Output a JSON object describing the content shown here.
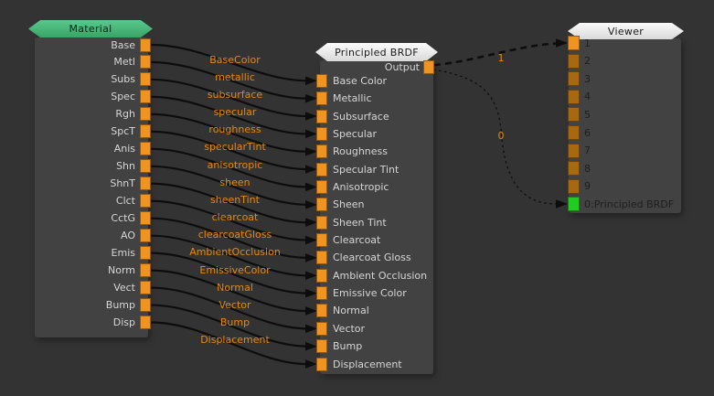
{
  "colors": {
    "background": "#333333",
    "node_body": "#424242",
    "header_material_green": "#48bb7e",
    "header_light": "#f1f1f1",
    "socket_connected": "#ef9421",
    "socket_unconnected": "#a8680f",
    "socket_viewer_result_green": "#20cc20",
    "wire": "#0d0d0d",
    "wire_label_orange": "#e8870f",
    "node_label_light": "#d6d6d6",
    "node_label_dark": "#1e1e1e"
  },
  "nodes": {
    "material": {
      "title": "Material",
      "outputs": [
        "Base",
        "Metl",
        "Subs",
        "Spec",
        "Rgh",
        "SpcT",
        "Anis",
        "Shn",
        "ShnT",
        "Clct",
        "CctG",
        "AO",
        "Emis",
        "Norm",
        "Vect",
        "Bump",
        "Disp"
      ]
    },
    "principled_brdf": {
      "title": "Principled BRDF",
      "output_label": "Output",
      "inputs": [
        "Base Color",
        "Metallic",
        "Subsurface",
        "Specular",
        "Roughness",
        "Specular Tint",
        "Anisotropic",
        "Sheen",
        "Sheen Tint",
        "Clearcoat",
        "Clearcoat Gloss",
        "Ambient Occlusion",
        "Emissive Color",
        "Normal",
        "Vector",
        "Bump",
        "Displacement"
      ]
    },
    "viewer": {
      "title": "Viewer",
      "inputs": [
        "1",
        "2",
        "3",
        "4",
        "5",
        "6",
        "7",
        "8",
        "9",
        "0:Principled BRDF"
      ]
    }
  },
  "connections": {
    "material_to_brdf_labels": [
      "BaseColor",
      "metallic",
      "subsurface",
      "specular",
      "roughness",
      "specularTint",
      "anisotropic",
      "sheen",
      "sheenTint",
      "clearcoat",
      "clearcoatGloss",
      "AmbientOcclusion",
      "EmissiveColor",
      "Normal",
      "Vector",
      "Bump",
      "Displacement"
    ],
    "brdf_to_viewer": [
      {
        "label": "1",
        "target": "1",
        "style": "dashed-thick"
      },
      {
        "label": "0",
        "target": "0:Principled BRDF",
        "style": "dotted-thin"
      }
    ]
  }
}
